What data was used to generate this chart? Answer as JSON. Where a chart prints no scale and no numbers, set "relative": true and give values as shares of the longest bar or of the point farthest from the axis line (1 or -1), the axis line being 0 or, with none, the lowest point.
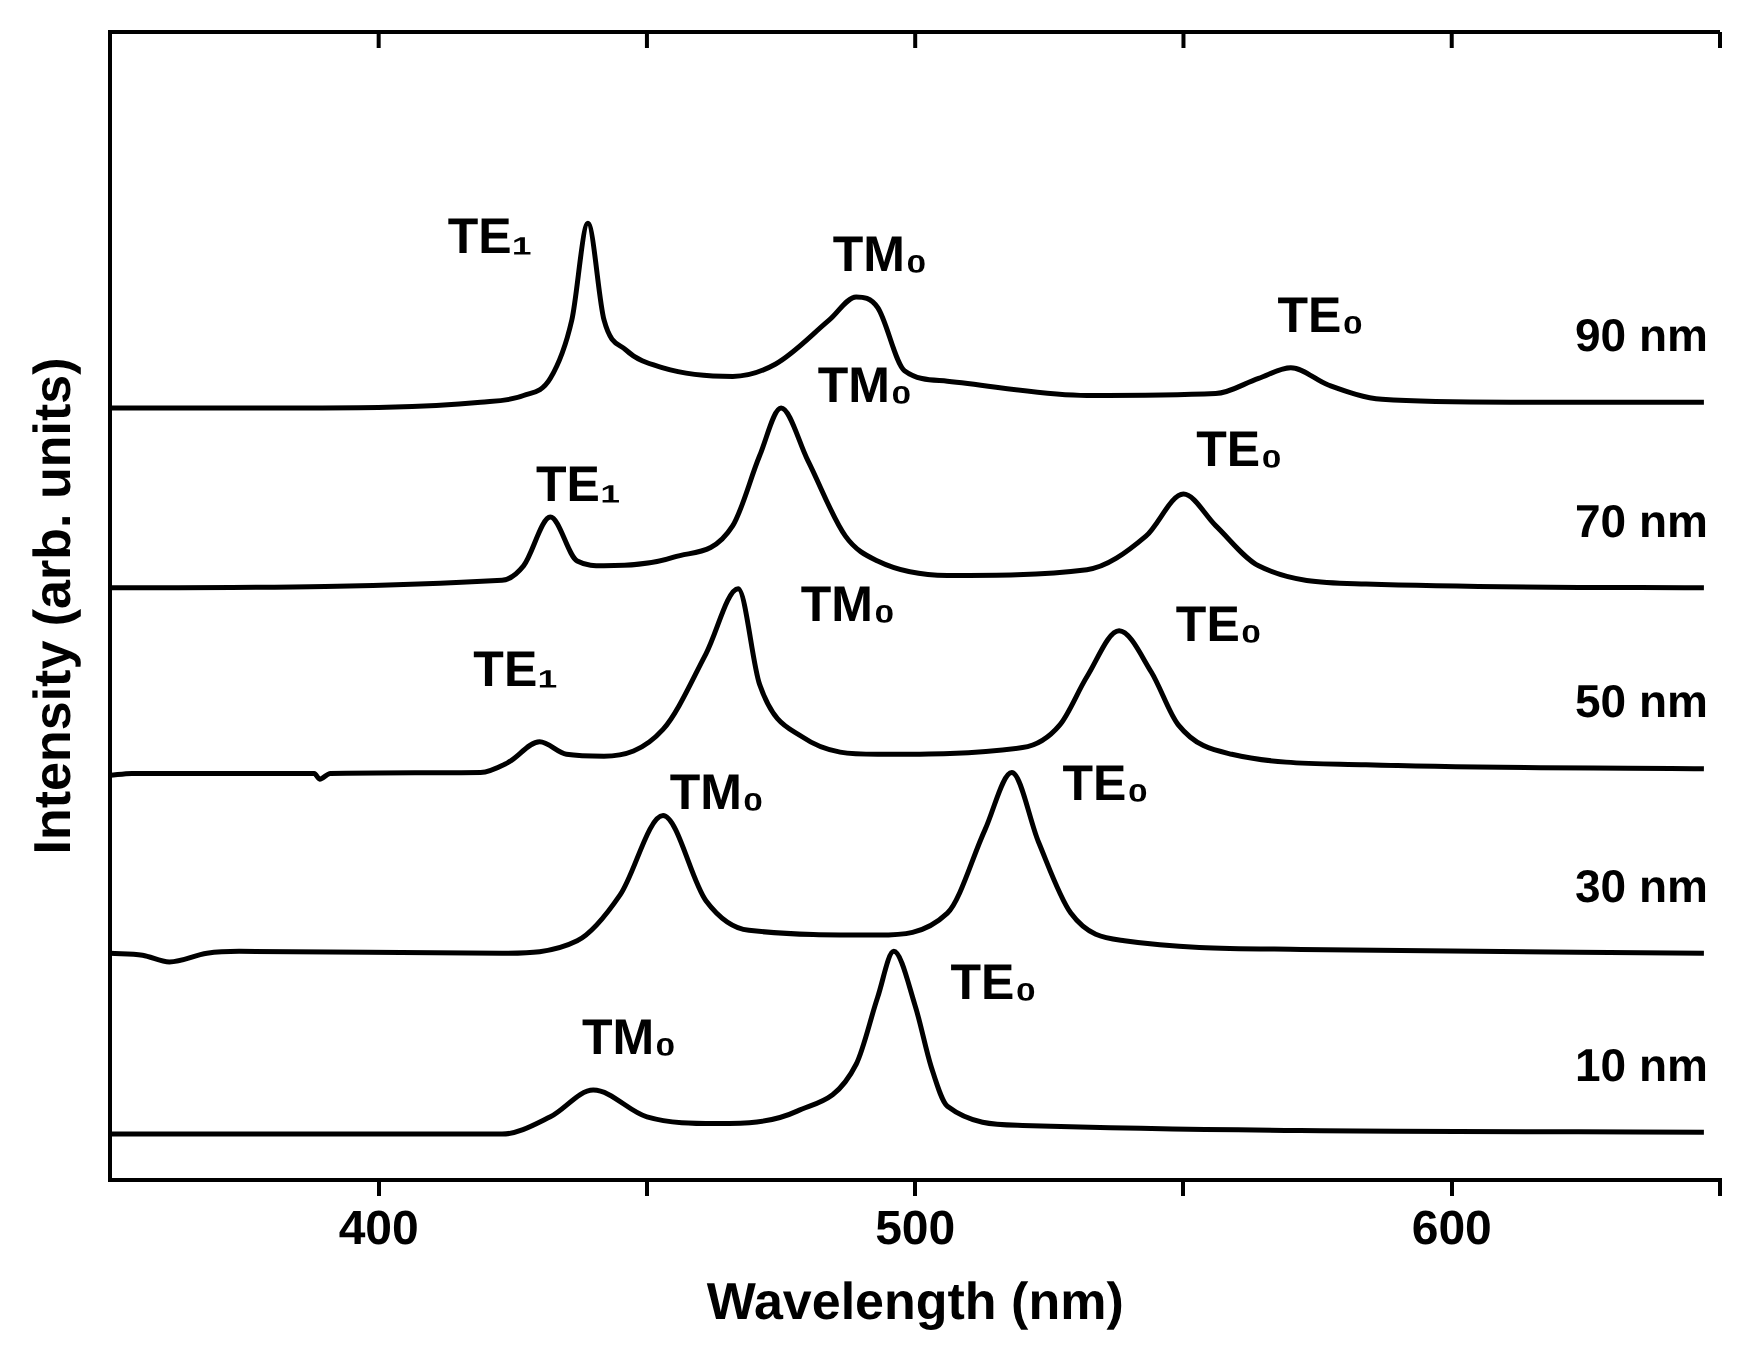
{
  "chart_data": {
    "type": "line",
    "xlabel": "Wavelength (nm)",
    "ylabel": "Intensity (arb. units)",
    "relative": true,
    "xlim": [
      350,
      650
    ],
    "xticks": [
      400,
      {
        "value": 450,
        "label": null
      },
      500,
      {
        "value": 550,
        "label": null
      },
      600,
      {
        "value": 650,
        "label": null
      }
    ],
    "series": [
      {
        "name": "90 nm",
        "color": "#000000",
        "x": [
          350,
          384,
          419,
          427,
          432,
          436,
          439,
          442,
          446,
          453,
          466,
          474,
          484,
          489,
          493,
          498,
          506,
          532,
          556,
          564,
          570,
          577,
          587,
          611,
          647
        ],
        "values": [
          0.807,
          0.807,
          0.813,
          0.82,
          0.838,
          0.899,
          1.0,
          0.899,
          0.868,
          0.849,
          0.84,
          0.853,
          0.899,
          0.923,
          0.912,
          0.846,
          0.835,
          0.82,
          0.822,
          0.838,
          0.849,
          0.831,
          0.816,
          0.813,
          0.813
        ]
      },
      {
        "name": "70 nm",
        "color": "#000000",
        "x": [
          350,
          423,
          427,
          432,
          437,
          442,
          455,
          466,
          471,
          475,
          480,
          487,
          493,
          506,
          532,
          543,
          550,
          556,
          564,
          584,
          647
        ],
        "values": [
          0.619,
          0.627,
          0.642,
          0.693,
          0.647,
          0.642,
          0.651,
          0.684,
          0.757,
          0.807,
          0.752,
          0.673,
          0.647,
          0.632,
          0.638,
          0.673,
          0.717,
          0.684,
          0.642,
          0.623,
          0.619
        ]
      },
      {
        "name": "50 nm",
        "color": "#000000",
        "x": [
          350,
          354,
          388,
          389,
          391,
          419,
          424,
          430,
          435,
          442,
          453,
          461,
          467,
          471,
          479,
          493,
          520,
          527,
          532,
          538,
          544,
          549,
          559,
          584,
          647
        ],
        "values": [
          0.423,
          0.425,
          0.425,
          0.419,
          0.425,
          0.426,
          0.436,
          0.458,
          0.445,
          0.443,
          0.471,
          0.55,
          0.618,
          0.518,
          0.463,
          0.445,
          0.452,
          0.476,
          0.526,
          0.574,
          0.531,
          0.476,
          0.445,
          0.434,
          0.43
        ]
      },
      {
        "name": "30 nm",
        "color": "#000000",
        "x": [
          350,
          356,
          361,
          368,
          374,
          423,
          437,
          445,
          453,
          461,
          469,
          493,
          506,
          513,
          518,
          523,
          529,
          539,
          572,
          647
        ],
        "values": [
          0.237,
          0.235,
          0.228,
          0.237,
          0.239,
          0.237,
          0.25,
          0.298,
          0.381,
          0.292,
          0.261,
          0.256,
          0.279,
          0.366,
          0.426,
          0.353,
          0.279,
          0.25,
          0.241,
          0.237
        ]
      },
      {
        "name": "10 nm",
        "color": "#000000",
        "x": [
          350,
          423,
          432,
          440,
          450,
          463,
          478,
          489,
          493,
          496,
          500,
          503,
          506,
          520,
          647
        ],
        "values": [
          0.048,
          0.048,
          0.066,
          0.094,
          0.066,
          0.059,
          0.072,
          0.121,
          0.191,
          0.239,
          0.182,
          0.118,
          0.077,
          0.057,
          0.05
        ]
      }
    ],
    "annotations": [
      {
        "text": "TE₁",
        "x": 439,
        "y": 1.0
      },
      {
        "text": "TM₀",
        "x": 489,
        "y": 0.923
      },
      {
        "text": "TE₀",
        "x": 570,
        "y": 0.849
      },
      {
        "text": "TE₁",
        "x": 432,
        "y": 0.693
      },
      {
        "text": "TM₀",
        "x": 475,
        "y": 0.807
      },
      {
        "text": "TE₀",
        "x": 550,
        "y": 0.717
      },
      {
        "text": "TE₁",
        "x": 430,
        "y": 0.458
      },
      {
        "text": "TM₀",
        "x": 467,
        "y": 0.618
      },
      {
        "text": "TE₀",
        "x": 538,
        "y": 0.574
      },
      {
        "text": "TM₀",
        "x": 453,
        "y": 0.381
      },
      {
        "text": "TE₀",
        "x": 518,
        "y": 0.426
      },
      {
        "text": "TM₀",
        "x": 440,
        "y": 0.094
      },
      {
        "text": "TE₀",
        "x": 496,
        "y": 0.239
      }
    ]
  }
}
